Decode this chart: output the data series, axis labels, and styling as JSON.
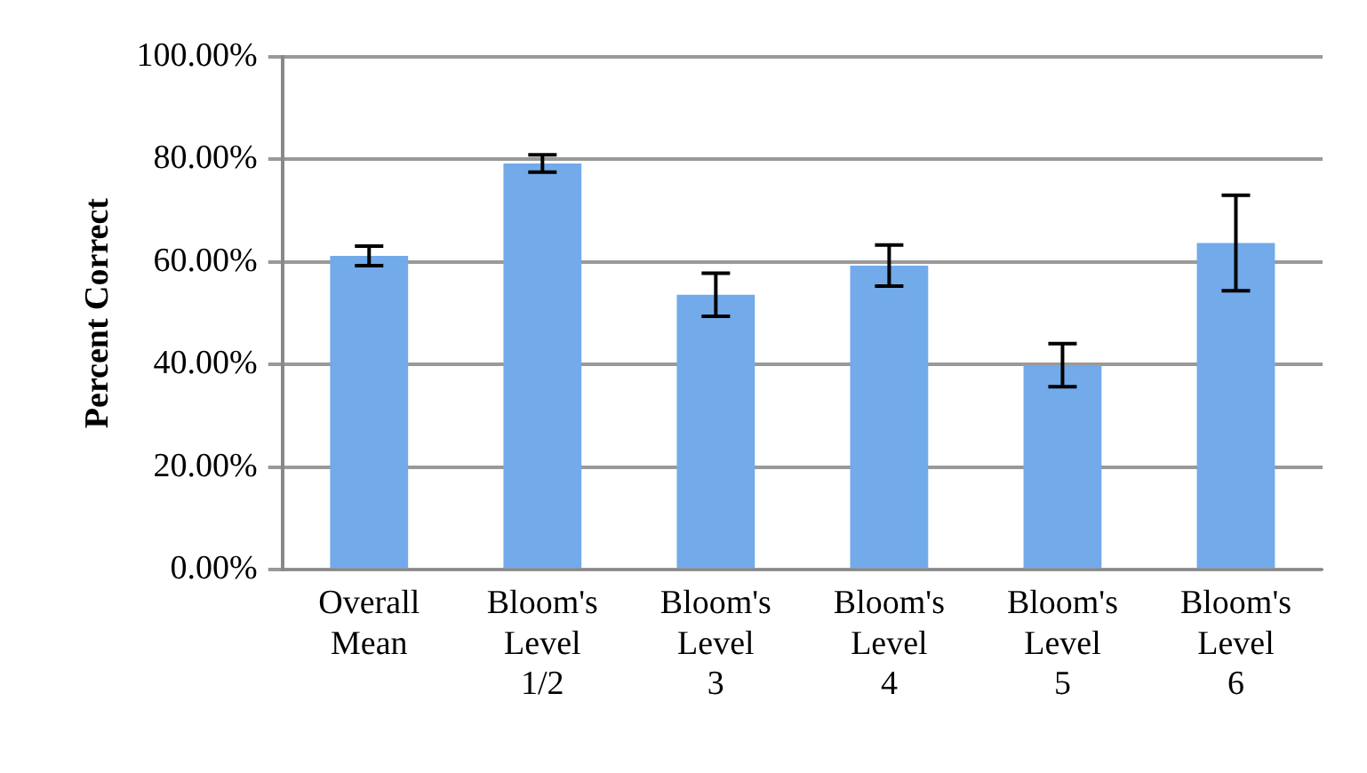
{
  "chart_data": {
    "type": "bar",
    "ylabel": "Percent Correct",
    "categories": [
      "Overall Mean",
      "Bloom's Level 1/2",
      "Bloom's Level 3",
      "Bloom's Level 4",
      "Bloom's Level 5",
      "Bloom's Level 6"
    ],
    "values": [
      61.2,
      79.2,
      53.6,
      59.3,
      39.9,
      63.7
    ],
    "errors": [
      1.9,
      1.7,
      4.2,
      4,
      4.2,
      9.3
    ],
    "color": "#72aaea",
    "ylim": [
      0,
      100
    ],
    "yticks": [
      {
        "value": 0,
        "label": "0.00%"
      },
      {
        "value": 20,
        "label": "20.00%"
      },
      {
        "value": 40,
        "label": "40.00%"
      },
      {
        "value": 60,
        "label": "60.00%"
      },
      {
        "value": 80,
        "label": "80.00%"
      },
      {
        "value": 100,
        "label": "100.00%"
      }
    ],
    "grid": "y",
    "legend": false
  }
}
